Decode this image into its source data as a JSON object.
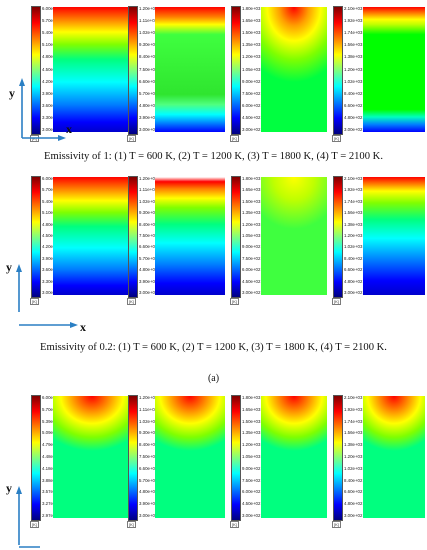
{
  "axes": {
    "y": "y",
    "x": "x"
  },
  "captions": {
    "row1": "Emissivity of 1: (1) T = 600 K, (2) T = 1200 K, (3) T = 1800 K, (4) T = 2100 K.",
    "row2": "Emissivity of 0.2: (1) T = 600 K, (2) T = 1200 K, (3) T = 1800 K, (4) T = 2100 K.",
    "subfigure_a": "(a)"
  },
  "unit_label": "[K]",
  "colors": {
    "jet": [
      "#00007f",
      "#0000ff",
      "#007fff",
      "#00ffff",
      "#7fff7f",
      "#ffff00",
      "#ff7f00",
      "#ff0000",
      "#7f0000"
    ],
    "axis_arrow": "#2a7fc4"
  },
  "rows": [
    {
      "panels": [
        {
          "ticks": [
            "6.00e+02",
            "5.70e+02",
            "5.40e+02",
            "5.10e+02",
            "4.80e+02",
            "4.50e+02",
            "4.20e+02",
            "3.90e+02",
            "3.60e+02",
            "3.30e+02",
            "3.00e+02"
          ]
        },
        {
          "ticks": [
            "1.20e+03",
            "1.11e+03",
            "1.02e+03",
            "9.30e+02",
            "8.40e+02",
            "7.50e+02",
            "6.60e+02",
            "5.70e+02",
            "4.80e+02",
            "3.90e+02",
            "3.00e+02"
          ]
        },
        {
          "ticks": [
            "1.80e+03",
            "1.65e+03",
            "1.50e+03",
            "1.35e+03",
            "1.20e+03",
            "1.05e+03",
            "9.00e+02",
            "7.50e+02",
            "6.00e+02",
            "4.50e+02",
            "3.00e+02"
          ]
        },
        {
          "ticks": [
            "2.10e+03",
            "1.92e+03",
            "1.74e+03",
            "1.56e+03",
            "1.38e+03",
            "1.20e+03",
            "1.02e+03",
            "8.40e+02",
            "6.60e+02",
            "4.80e+02",
            "3.00e+02"
          ]
        }
      ]
    },
    {
      "panels": [
        {
          "ticks": [
            "6.00e+02",
            "5.70e+02",
            "5.40e+02",
            "5.10e+02",
            "4.80e+02",
            "4.50e+02",
            "4.20e+02",
            "3.90e+02",
            "3.60e+02",
            "3.30e+02",
            "3.00e+02"
          ]
        },
        {
          "ticks": [
            "1.20e+03",
            "1.11e+03",
            "1.02e+03",
            "9.30e+02",
            "8.40e+02",
            "7.50e+02",
            "6.60e+02",
            "5.70e+02",
            "4.80e+02",
            "3.90e+02",
            "3.00e+02"
          ]
        },
        {
          "ticks": [
            "1.80e+03",
            "1.65e+03",
            "1.50e+03",
            "1.35e+03",
            "1.20e+03",
            "1.05e+03",
            "9.00e+02",
            "7.50e+02",
            "6.00e+02",
            "4.50e+02",
            "3.00e+02"
          ]
        },
        {
          "ticks": [
            "2.10e+03",
            "1.92e+03",
            "1.74e+03",
            "1.56e+03",
            "1.38e+03",
            "1.20e+03",
            "1.02e+03",
            "8.40e+02",
            "6.60e+02",
            "4.80e+02",
            "3.00e+02"
          ]
        }
      ]
    },
    {
      "panels": [
        {
          "ticks": [
            "6.00e+02",
            "5.70e+02",
            "5.39e+02",
            "5.09e+02",
            "4.79e+02",
            "4.48e+02",
            "4.18e+02",
            "3.88e+02",
            "3.57e+02",
            "3.27e+02",
            "2.97e+02"
          ]
        },
        {
          "ticks": [
            "1.20e+03",
            "1.11e+03",
            "1.02e+03",
            "9.30e+02",
            "8.40e+02",
            "7.50e+02",
            "6.60e+02",
            "5.70e+02",
            "4.80e+02",
            "3.90e+02",
            "3.00e+02"
          ]
        },
        {
          "ticks": [
            "1.80e+03",
            "1.65e+03",
            "1.50e+03",
            "1.35e+03",
            "1.20e+03",
            "1.05e+03",
            "9.00e+02",
            "7.50e+02",
            "6.00e+02",
            "4.50e+02",
            "3.00e+02"
          ]
        },
        {
          "ticks": [
            "2.10e+03",
            "1.92e+03",
            "1.74e+03",
            "1.56e+03",
            "1.38e+03",
            "1.20e+03",
            "1.02e+03",
            "8.40e+02",
            "6.60e+02",
            "4.80e+02",
            "3.00e+02"
          ]
        }
      ]
    }
  ]
}
